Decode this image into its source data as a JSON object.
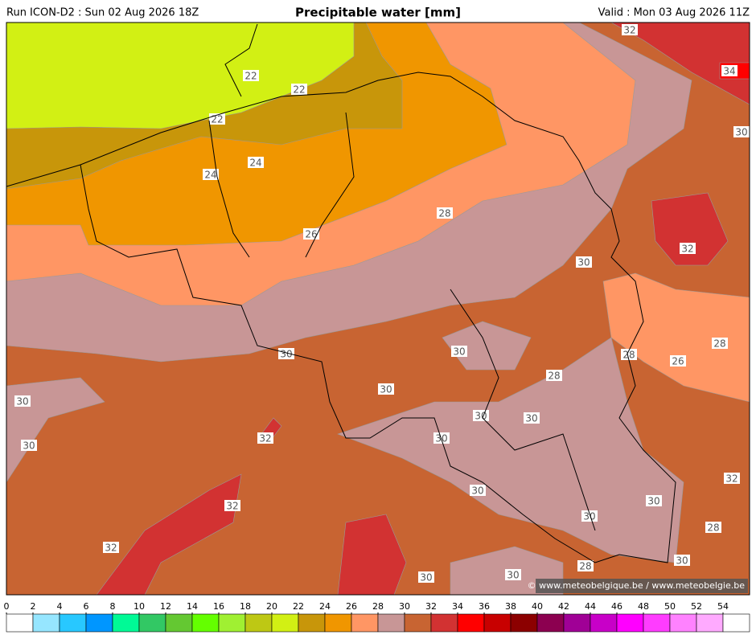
{
  "header": {
    "run": "Run ICON-D2 : Sun 02 Aug 2026 18Z",
    "title": "Precipitable water [mm]",
    "valid": "Valid : Mon 03 Aug 2026 11Z"
  },
  "map": {
    "contour_labels": [
      22,
      22,
      22,
      24,
      24,
      26,
      28,
      30,
      32,
      32,
      34,
      30,
      28,
      26,
      28,
      28,
      30,
      30,
      30,
      30,
      30,
      30,
      30,
      30,
      32,
      32,
      32,
      32,
      30,
      30,
      30,
      28,
      30,
      28,
      30,
      30
    ]
  },
  "colorbar": {
    "ticks": [
      0,
      2,
      4,
      6,
      8,
      10,
      12,
      14,
      16,
      18,
      20,
      22,
      24,
      26,
      28,
      30,
      32,
      34,
      36,
      38,
      40,
      42,
      44,
      46,
      48,
      50,
      52,
      54
    ],
    "colors": [
      "#ffffff",
      "#96e6ff",
      "#28c8ff",
      "#0096ff",
      "#00fa96",
      "#32c864",
      "#64c832",
      "#64ff00",
      "#a0f032",
      "#bec814",
      "#d2f014",
      "#c8960a",
      "#f09600",
      "#ff9664",
      "#c89696",
      "#c86432",
      "#d23232",
      "#ff0000",
      "#c80000",
      "#8c0000",
      "#8c0050",
      "#a00096",
      "#c800c8",
      "#ff00ff",
      "#ff3cff",
      "#ff82ff",
      "#ffaaff",
      "#ffffff"
    ]
  },
  "copyright": "© www.meteobelgique.be / www.meteobelgie.be"
}
